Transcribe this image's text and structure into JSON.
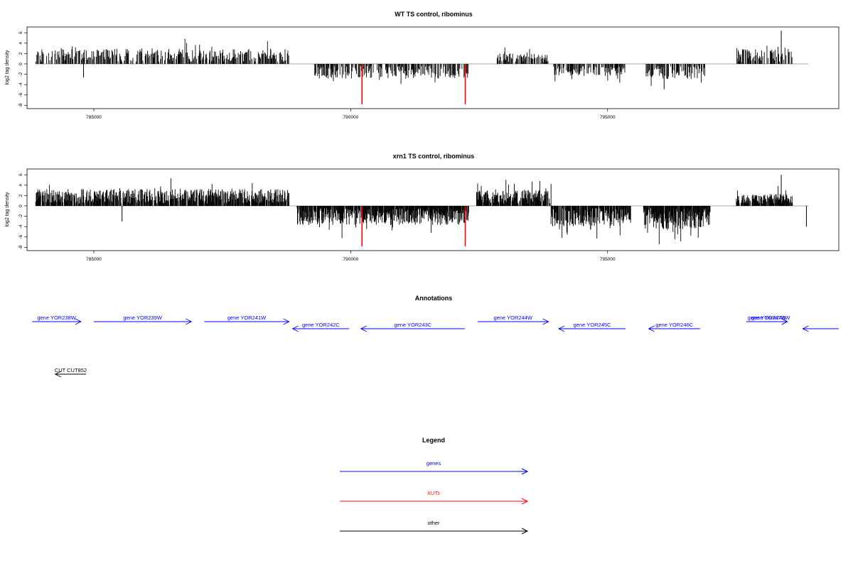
{
  "colors": {
    "genes": "#0000ff",
    "xuts": "#ff0000",
    "other": "#000000",
    "axis": "#000000",
    "baseline": "#888888"
  },
  "chart_data": [
    {
      "type": "bar",
      "title": "WT TS control, ribominus",
      "ylabel": "log2 tag density",
      "xlim": [
        783700,
        799500
      ],
      "ylim": [
        -8,
        7
      ],
      "x_ticks": [
        785000,
        790000,
        795000
      ],
      "y_ticks": [
        -8,
        -6,
        -4,
        -2,
        0,
        2,
        4,
        6
      ],
      "x_tick_labels": [
        "785000",
        "790000",
        "795000"
      ],
      "y_tick_labels": [
        "-8",
        "-6",
        "-4",
        "-2",
        "0",
        "2",
        "4",
        "6"
      ],
      "data_extent": [
        783870,
        798910
      ],
      "forward_regions": [
        {
          "start": 783870,
          "end": 788800,
          "max": 4.5
        },
        {
          "start": 792850,
          "end": 793850,
          "max": 3.0
        },
        {
          "start": 797500,
          "end": 798600,
          "max": 4.5
        }
      ],
      "reverse_regions": [
        {
          "start": 789300,
          "end": 792300,
          "max": 4.5
        },
        {
          "start": 793950,
          "end": 795350,
          "max": 3.5
        },
        {
          "start": 795750,
          "end": 796900,
          "max": 4.8
        }
      ],
      "notable_peaks": [
        {
          "x": 798380,
          "y": 6.4
        },
        {
          "x": 784800,
          "y": -2.6
        },
        {
          "x": 796100,
          "y": -4.9
        }
      ],
      "highlighted": [
        {
          "x": 790220,
          "y": -7.8,
          "color": "#ff0000"
        },
        {
          "x": 792230,
          "y": -7.8,
          "color": "#ff0000"
        }
      ]
    },
    {
      "type": "bar",
      "title": "xrn1 TS control, ribominus",
      "ylabel": "log2 tag density",
      "xlim": [
        783700,
        799500
      ],
      "ylim": [
        -8,
        7
      ],
      "x_ticks": [
        785000,
        790000,
        795000
      ],
      "y_ticks": [
        -8,
        -6,
        -4,
        -2,
        0,
        2,
        4,
        6
      ],
      "x_tick_labels": [
        "785000",
        "790000",
        "795000"
      ],
      "y_tick_labels": [
        "-8",
        "-6",
        "-4",
        "-2",
        "0",
        "2",
        "4",
        "6"
      ],
      "data_extent": [
        783870,
        798910
      ],
      "forward_regions": [
        {
          "start": 783870,
          "end": 788800,
          "max": 5.2
        },
        {
          "start": 792450,
          "end": 793900,
          "max": 4.8
        },
        {
          "start": 797500,
          "end": 798600,
          "max": 3.5
        }
      ],
      "reverse_regions": [
        {
          "start": 788950,
          "end": 792300,
          "max": 6.0
        },
        {
          "start": 793900,
          "end": 795450,
          "max": 6.5
        },
        {
          "start": 795700,
          "end": 797000,
          "max": 7.5
        }
      ],
      "notable_peaks": [
        {
          "x": 798380,
          "y": 6.0
        },
        {
          "x": 798870,
          "y": -4.0
        },
        {
          "x": 785550,
          "y": -3.0
        }
      ],
      "highlighted": [
        {
          "x": 790220,
          "y": -7.8,
          "color": "#ff0000"
        },
        {
          "x": 792230,
          "y": -7.8,
          "color": "#ff0000"
        }
      ]
    }
  ],
  "annotations": {
    "title": "Annotations",
    "features": [
      {
        "label": "gene YOR238W",
        "start": 783800,
        "end": 784750,
        "strand": "+",
        "row": 0,
        "color": "#0000ff"
      },
      {
        "label": "gene YOR239W",
        "start": 785000,
        "end": 786900,
        "strand": "+",
        "row": 0,
        "color": "#0000ff"
      },
      {
        "label": "gene YOR241W",
        "start": 787150,
        "end": 788800,
        "strand": "+",
        "row": 0,
        "color": "#0000ff"
      },
      {
        "label": "gene YOR242C",
        "start": 788870,
        "end": 789970,
        "strand": "-",
        "row": 1,
        "color": "#0000ff"
      },
      {
        "label": "gene YOR243C",
        "start": 790200,
        "end": 792220,
        "strand": "-",
        "row": 1,
        "color": "#0000ff"
      },
      {
        "label": "gene YOR244W",
        "start": 792470,
        "end": 793850,
        "strand": "+",
        "row": 0,
        "color": "#0000ff"
      },
      {
        "label": "gene YOR245C",
        "start": 794050,
        "end": 795350,
        "strand": "-",
        "row": 1,
        "color": "#0000ff"
      },
      {
        "label": "gene YOR246C",
        "start": 795800,
        "end": 796800,
        "strand": "-",
        "row": 1,
        "color": "#0000ff"
      },
      {
        "label": "gene YOR247W",
        "start": 797700,
        "end": 798500,
        "strand": "+",
        "row": 0,
        "color": "#0000ff"
      },
      {
        "label": "gene YOR248W",
        "start": 797850,
        "end": 798500,
        "strand": "+",
        "row": 0,
        "color": "#0000ff"
      },
      {
        "label": "",
        "start": 798800,
        "end": 799500,
        "strand": "-",
        "row": 1,
        "color": "#0000ff"
      },
      {
        "label": "CUT CUT852",
        "start": 784250,
        "end": 784850,
        "strand": "-",
        "row": 2,
        "color": "#000000"
      }
    ]
  },
  "legend": {
    "title": "Legend",
    "items": [
      {
        "label": "genes",
        "color": "#0000ff"
      },
      {
        "label": "XUTs",
        "color": "#ff0000"
      },
      {
        "label": "other",
        "color": "#000000"
      }
    ]
  }
}
